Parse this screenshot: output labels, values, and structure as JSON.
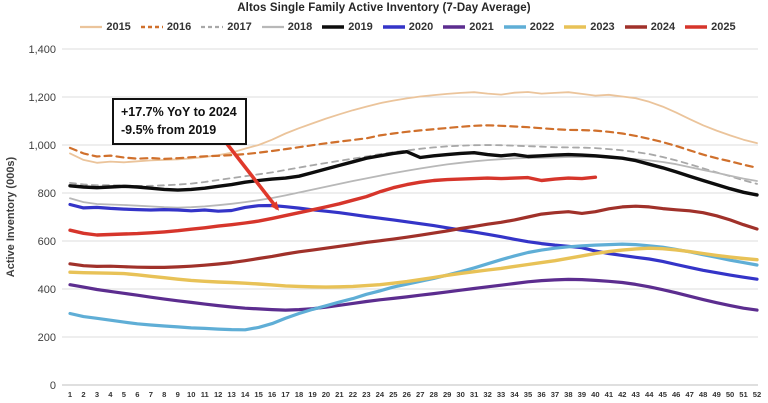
{
  "title": "Altos Single Family Active Inventory (7-Day Average)",
  "ui_colors": {
    "grid": "#DCDCDC",
    "axis": "#BFBFBF",
    "tick_text": "#404040",
    "title_text": "#262626",
    "arrow": "#E0392B"
  },
  "annotation": {
    "line1": "+17.7% YoY to 2024",
    "line2": "-9.5% from 2019",
    "arrow_points_to": {
      "week": 17,
      "value": 705
    }
  },
  "chart_data": {
    "type": "line",
    "title": "Altos Single Family Active Inventory (7-Day Average)",
    "xlabel": "",
    "ylabel": "Active Inventory (000s)",
    "x": [
      1,
      2,
      3,
      4,
      5,
      6,
      7,
      8,
      9,
      10,
      11,
      12,
      13,
      14,
      15,
      16,
      17,
      18,
      19,
      20,
      21,
      22,
      23,
      24,
      25,
      26,
      27,
      28,
      29,
      30,
      31,
      32,
      33,
      34,
      35,
      36,
      37,
      38,
      39,
      40,
      41,
      42,
      43,
      44,
      45,
      46,
      47,
      48,
      49,
      50,
      51,
      52
    ],
    "ylim": [
      0,
      1400
    ],
    "ytick_step": 200,
    "yticks": [
      "0",
      "200",
      "400",
      "600",
      "800",
      "1,000",
      "1,200",
      "1,400"
    ],
    "grid": "horizontal",
    "legend_position": "top",
    "series": [
      {
        "name": "2015",
        "color": "#EBC49B",
        "dash": "",
        "width": 1.8,
        "values": [
          965,
          938,
          926,
          931,
          928,
          932,
          936,
          938,
          940,
          944,
          950,
          958,
          968,
          985,
          1000,
          1022,
          1048,
          1070,
          1090,
          1110,
          1128,
          1145,
          1160,
          1174,
          1185,
          1194,
          1202,
          1208,
          1213,
          1217,
          1220,
          1214,
          1210,
          1218,
          1221,
          1214,
          1217,
          1220,
          1213,
          1206,
          1209,
          1202,
          1195,
          1180,
          1160,
          1135,
          1108,
          1082,
          1060,
          1040,
          1022,
          1008
        ]
      },
      {
        "name": "2016",
        "color": "#D0702C",
        "dash": "7 5",
        "width": 2.2,
        "values": [
          988,
          965,
          952,
          956,
          948,
          943,
          946,
          942,
          945,
          949,
          953,
          955,
          958,
          962,
          968,
          975,
          983,
          991,
          999,
          1007,
          1014,
          1021,
          1028,
          1040,
          1048,
          1055,
          1061,
          1066,
          1071,
          1076,
          1080,
          1082,
          1080,
          1077,
          1074,
          1070,
          1066,
          1063,
          1062,
          1060,
          1055,
          1048,
          1038,
          1026,
          1012,
          996,
          978,
          960,
          945,
          932,
          918,
          905
        ]
      },
      {
        "name": "2017",
        "color": "#A8A8A8",
        "dash": "6 5",
        "width": 1.8,
        "values": [
          842,
          836,
          832,
          833,
          831,
          829,
          830,
          832,
          835,
          839,
          846,
          854,
          862,
          870,
          878,
          886,
          896,
          906,
          916,
          925,
          934,
          943,
          952,
          962,
          970,
          977,
          984,
          990,
          994,
          997,
          999,
          1000,
          999,
          997,
          995,
          993,
          991,
          990,
          989,
          987,
          983,
          978,
          971,
          962,
          950,
          936,
          920,
          903,
          886,
          870,
          853,
          838
        ]
      },
      {
        "name": "2018",
        "color": "#B8B8B8",
        "dash": "",
        "width": 1.8,
        "values": [
          778,
          762,
          754,
          752,
          750,
          747,
          744,
          741,
          739,
          741,
          744,
          749,
          755,
          762,
          770,
          779,
          790,
          802,
          814,
          826,
          838,
          850,
          861,
          872,
          883,
          893,
          902,
          911,
          919,
          926,
          932,
          937,
          941,
          944,
          946,
          947,
          948,
          950,
          951,
          950,
          948,
          945,
          941,
          936,
          929,
          920,
          908,
          896,
          884,
          872,
          860,
          850
        ]
      },
      {
        "name": "2019",
        "color": "#0D0D0D",
        "dash": "",
        "width": 3.4,
        "values": [
          830,
          825,
          822,
          825,
          828,
          825,
          820,
          815,
          812,
          815,
          820,
          828,
          835,
          845,
          852,
          858,
          862,
          870,
          885,
          900,
          915,
          930,
          945,
          955,
          965,
          972,
          948,
          955,
          960,
          965,
          968,
          960,
          955,
          960,
          952,
          955,
          958,
          960,
          958,
          955,
          950,
          945,
          935,
          920,
          905,
          888,
          870,
          852,
          835,
          818,
          803,
          792
        ]
      },
      {
        "name": "2020",
        "color": "#3434C8",
        "dash": "",
        "width": 3.2,
        "values": [
          752,
          738,
          740,
          736,
          733,
          731,
          729,
          731,
          729,
          726,
          729,
          724,
          727,
          740,
          747,
          748,
          743,
          737,
          730,
          724,
          718,
          710,
          702,
          695,
          688,
          680,
          672,
          664,
          655,
          646,
          637,
          628,
          618,
          607,
          597,
          589,
          583,
          578,
          572,
          558,
          548,
          540,
          532,
          525,
          515,
          502,
          490,
          478,
          468,
          458,
          449,
          441
        ]
      },
      {
        "name": "2021",
        "color": "#5C2D8F",
        "dash": "",
        "width": 3.2,
        "values": [
          418,
          408,
          398,
          390,
          382,
          374,
          366,
          358,
          351,
          344,
          337,
          331,
          325,
          320,
          317,
          314,
          312,
          314,
          318,
          324,
          332,
          340,
          348,
          355,
          361,
          367,
          374,
          381,
          388,
          395,
          402,
          409,
          416,
          423,
          430,
          435,
          438,
          440,
          439,
          436,
          432,
          427,
          419,
          409,
          397,
          384,
          370,
          356,
          343,
          331,
          320,
          312
        ]
      },
      {
        "name": "2022",
        "color": "#5FAED6",
        "dash": "",
        "width": 3.2,
        "values": [
          298,
          285,
          278,
          270,
          262,
          255,
          250,
          246,
          242,
          238,
          236,
          233,
          231,
          230,
          240,
          256,
          278,
          298,
          315,
          330,
          346,
          360,
          378,
          392,
          408,
          420,
          432,
          444,
          458,
          472,
          488,
          505,
          522,
          538,
          552,
          562,
          570,
          576,
          580,
          583,
          585,
          587,
          585,
          580,
          574,
          565,
          555,
          543,
          532,
          520,
          510,
          500
        ]
      },
      {
        "name": "2023",
        "color": "#E8C257",
        "dash": "",
        "width": 3.4,
        "values": [
          470,
          468,
          467,
          466,
          464,
          459,
          453,
          447,
          441,
          436,
          432,
          429,
          427,
          424,
          421,
          417,
          413,
          411,
          409,
          408,
          409,
          411,
          414,
          418,
          424,
          431,
          439,
          448,
          457,
          465,
          472,
          479,
          486,
          494,
          502,
          510,
          518,
          528,
          538,
          548,
          556,
          562,
          567,
          570,
          568,
          563,
          556,
          548,
          540,
          533,
          527,
          522
        ]
      },
      {
        "name": "2024",
        "color": "#A0312A",
        "dash": "",
        "width": 3.2,
        "values": [
          505,
          497,
          494,
          495,
          493,
          491,
          490,
          490,
          492,
          495,
          499,
          504,
          510,
          518,
          527,
          536,
          546,
          555,
          562,
          570,
          578,
          586,
          594,
          601,
          608,
          616,
          624,
          633,
          642,
          652,
          661,
          670,
          678,
          688,
          700,
          712,
          718,
          722,
          715,
          722,
          734,
          742,
          745,
          742,
          735,
          730,
          726,
          718,
          705,
          688,
          668,
          650
        ]
      },
      {
        "name": "2025",
        "color": "#D6352B",
        "dash": "",
        "width": 3.4,
        "values": [
          645,
          632,
          625,
          627,
          629,
          631,
          634,
          638,
          643,
          649,
          655,
          662,
          668,
          675,
          683,
          694,
          706,
          718,
          730,
          742,
          755,
          770,
          785,
          805,
          822,
          835,
          845,
          852,
          856,
          858,
          860,
          862,
          860,
          862,
          864,
          852,
          858,
          862,
          860,
          866
        ]
      }
    ]
  }
}
